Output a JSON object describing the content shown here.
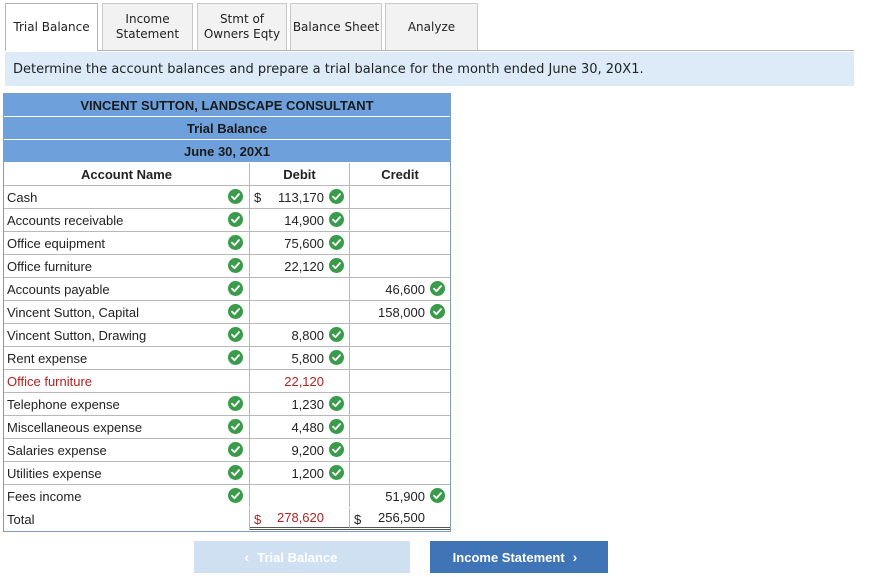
{
  "tabs": [
    {
      "label": "Trial Balance",
      "active": true
    },
    {
      "label": "Income\nStatement",
      "active": false
    },
    {
      "label": "Stmt of\nOwners Eqty",
      "active": false
    },
    {
      "label": "Balance Sheet",
      "active": false
    },
    {
      "label": "Analyze",
      "active": false
    }
  ],
  "instruction": "Determine the account balances and prepare a trial balance for the month ended June 30, 20X1.",
  "header": {
    "company": "VINCENT SUTTON, LANDSCAPE CONSULTANT",
    "title": "Trial Balance",
    "date": "June 30, 20X1"
  },
  "columns": {
    "name": "Account Name",
    "debit": "Debit",
    "credit": "Credit"
  },
  "rows": [
    {
      "name": "Cash",
      "debit": "113,170",
      "credit": "",
      "dollar_debit": true,
      "name_check": true,
      "debit_check": true,
      "credit_check": false,
      "red": false
    },
    {
      "name": "Accounts receivable",
      "debit": "14,900",
      "credit": "",
      "name_check": true,
      "debit_check": true,
      "credit_check": false,
      "red": false
    },
    {
      "name": "Office equipment",
      "debit": "75,600",
      "credit": "",
      "name_check": true,
      "debit_check": true,
      "credit_check": false,
      "red": false
    },
    {
      "name": "Office furniture",
      "debit": "22,120",
      "credit": "",
      "name_check": true,
      "debit_check": true,
      "credit_check": false,
      "red": false
    },
    {
      "name": "Accounts payable",
      "debit": "",
      "credit": "46,600",
      "name_check": true,
      "debit_check": false,
      "credit_check": true,
      "red": false
    },
    {
      "name": "Vincent Sutton, Capital",
      "debit": "",
      "credit": "158,000",
      "name_check": true,
      "debit_check": false,
      "credit_check": true,
      "red": false
    },
    {
      "name": "Vincent Sutton, Drawing",
      "debit": "8,800",
      "credit": "",
      "name_check": true,
      "debit_check": true,
      "credit_check": false,
      "red": false
    },
    {
      "name": "Rent expense",
      "debit": "5,800",
      "credit": "",
      "name_check": true,
      "debit_check": true,
      "credit_check": false,
      "red": false
    },
    {
      "name": "Office furniture",
      "debit": "22,120",
      "credit": "",
      "name_check": false,
      "debit_check": false,
      "credit_check": false,
      "red": true
    },
    {
      "name": "Telephone expense",
      "debit": "1,230",
      "credit": "",
      "name_check": true,
      "debit_check": true,
      "credit_check": false,
      "red": false
    },
    {
      "name": "Miscellaneous expense",
      "debit": "4,480",
      "credit": "",
      "name_check": true,
      "debit_check": true,
      "credit_check": false,
      "red": false
    },
    {
      "name": "Salaries expense",
      "debit": "9,200",
      "credit": "",
      "name_check": true,
      "debit_check": true,
      "credit_check": false,
      "red": false
    },
    {
      "name": "Utilities expense",
      "debit": "1,200",
      "credit": "",
      "name_check": true,
      "debit_check": true,
      "credit_check": false,
      "red": false
    },
    {
      "name": "Fees income",
      "debit": "",
      "credit": "51,900",
      "name_check": true,
      "debit_check": false,
      "credit_check": true,
      "red": false
    }
  ],
  "total": {
    "name": "Total",
    "debit": "278,620",
    "credit": "256,500",
    "dollar": "$"
  },
  "dollar_sign": "$",
  "buttons": {
    "prev": "Trial Balance",
    "next": "Income Statement"
  },
  "colors": {
    "check_green": "#3a9b4a",
    "header_blue": "#6ea0dc",
    "error_red": "#b22222",
    "next_blue": "#3f74b6"
  }
}
